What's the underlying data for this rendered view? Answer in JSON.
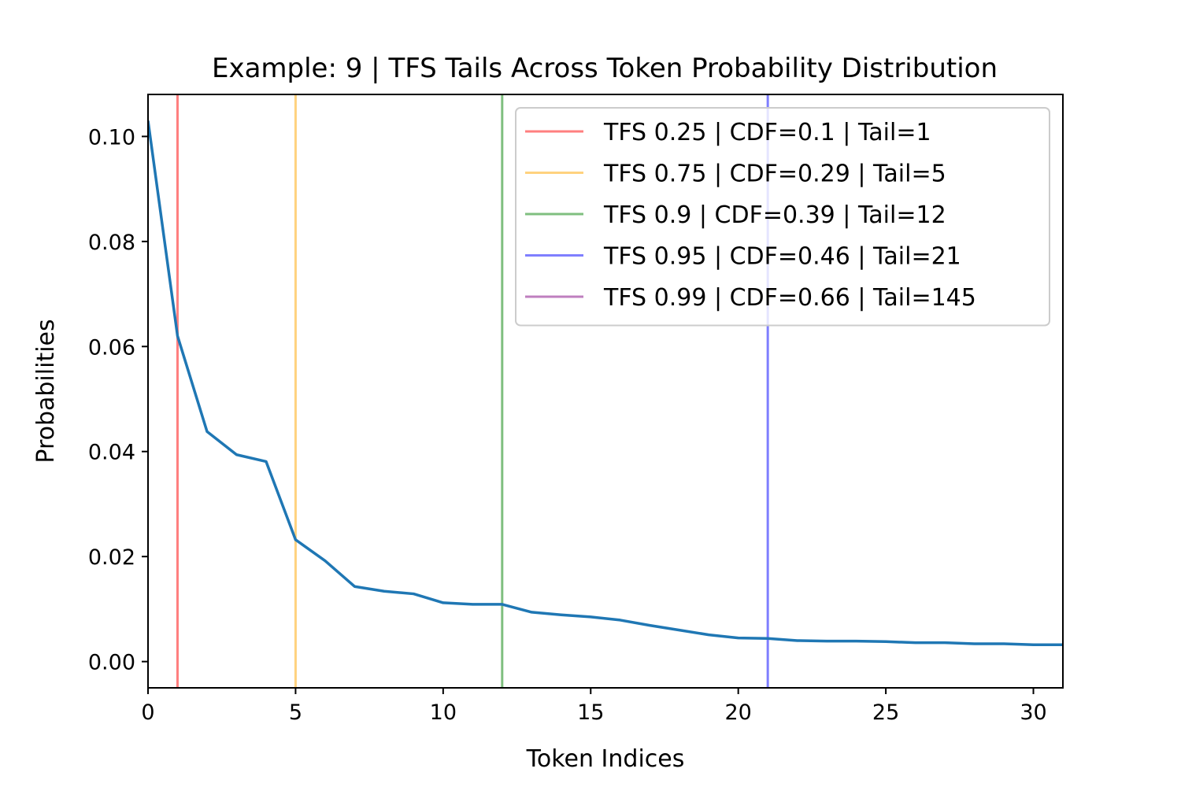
{
  "chart_data": {
    "type": "line",
    "title": "Example: 9 | TFS Tails Across Token Probability Distribution",
    "xlabel": "Token Indices",
    "ylabel": "Probabilities",
    "xlim": [
      0,
      31
    ],
    "ylim": [
      -0.005,
      0.108
    ],
    "xticks": [
      0,
      5,
      10,
      15,
      20,
      25,
      30
    ],
    "yticks": [
      0.0,
      0.02,
      0.04,
      0.06,
      0.08,
      0.1
    ],
    "ytick_labels": [
      "0.00",
      "0.02",
      "0.04",
      "0.06",
      "0.08",
      "0.10"
    ],
    "grid": false,
    "legend_position": "top-right",
    "series": [
      {
        "color": "#1f77b4",
        "x": [
          0,
          1,
          2,
          3,
          4,
          5,
          6,
          7,
          8,
          9,
          10,
          11,
          12,
          13,
          14,
          15,
          16,
          17,
          18,
          19,
          20,
          21,
          22,
          23,
          24,
          25,
          26,
          27,
          28,
          29,
          30,
          31
        ],
        "y": [
          0.103,
          0.062,
          0.0438,
          0.0394,
          0.0381,
          0.0232,
          0.0192,
          0.0143,
          0.0134,
          0.0129,
          0.0112,
          0.0109,
          0.0109,
          0.0094,
          0.0089,
          0.0085,
          0.0079,
          0.0069,
          0.006,
          0.0051,
          0.0045,
          0.0044,
          0.004,
          0.0039,
          0.0039,
          0.0038,
          0.0036,
          0.0036,
          0.0034,
          0.0034,
          0.0032,
          0.0032
        ]
      }
    ],
    "vlines": [
      {
        "x": 1,
        "color": "#ff0000",
        "label": "TFS 0.25 | CDF=0.1 | Tail=1"
      },
      {
        "x": 5,
        "color": "#ffa500",
        "label": "TFS 0.75 | CDF=0.29 | Tail=5"
      },
      {
        "x": 12,
        "color": "#008000",
        "label": "TFS 0.9 | CDF=0.39 | Tail=12"
      },
      {
        "x": 21,
        "color": "#0000ff",
        "label": "TFS 0.95 | CDF=0.46 | Tail=21"
      },
      {
        "x": 145,
        "color": "#800080",
        "label": "TFS 0.99 | CDF=0.66 | Tail=145"
      }
    ]
  }
}
